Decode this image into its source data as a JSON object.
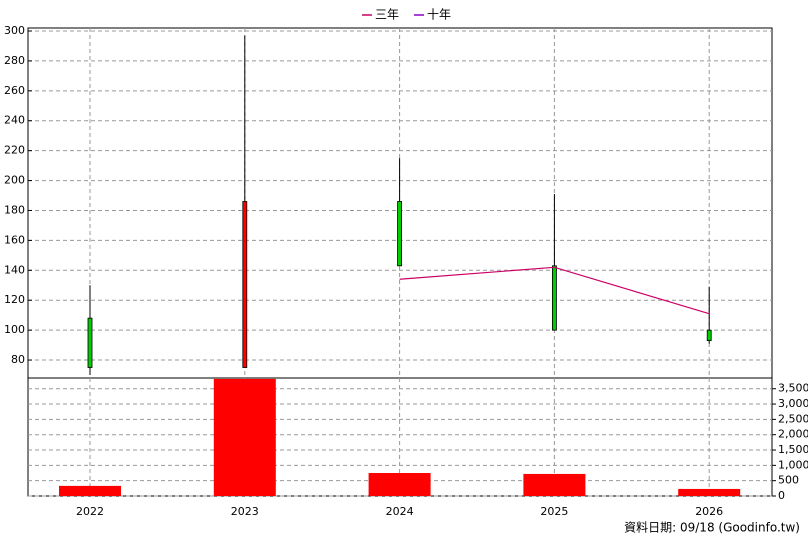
{
  "chart_data": {
    "type": "candlestick",
    "categories": [
      "2022",
      "2023",
      "2024",
      "2025",
      "2026"
    ],
    "open": [
      108,
      75,
      186,
      143,
      100
    ],
    "high": [
      130,
      297,
      215,
      191,
      129
    ],
    "low": [
      70,
      75,
      143,
      100,
      91
    ],
    "close": [
      75,
      186,
      143,
      100,
      93
    ],
    "up_color": "#ff0000",
    "down_color": "#00cc00",
    "ylim": [
      68,
      302
    ],
    "yticks": [
      80,
      100,
      120,
      140,
      160,
      180,
      200,
      220,
      240,
      260,
      280,
      300
    ],
    "series": [
      {
        "name": "三年",
        "color": "#cc0066",
        "values": [
          null,
          null,
          134,
          142,
          111
        ]
      },
      {
        "name": "十年",
        "color": "#8800cc",
        "values": [
          null,
          null,
          null,
          null,
          null
        ]
      }
    ],
    "volume": {
      "values": [
        330,
        3820,
        750,
        720,
        230
      ],
      "color": "#ff0000",
      "ylim": [
        0,
        3850
      ],
      "yticks": [
        0,
        500,
        {
          "value": 1000,
          "label": "1,000"
        },
        {
          "value": 1500,
          "label": "1,500"
        },
        {
          "value": 2000,
          "label": "2,000"
        },
        {
          "value": 2500,
          "label": "2,500"
        },
        {
          "value": 3000,
          "label": "3,000"
        },
        {
          "value": 3500,
          "label": "3,500"
        }
      ]
    },
    "grid": true,
    "footer": "資料日期: 09/18 (Goodinfo.tw)"
  }
}
